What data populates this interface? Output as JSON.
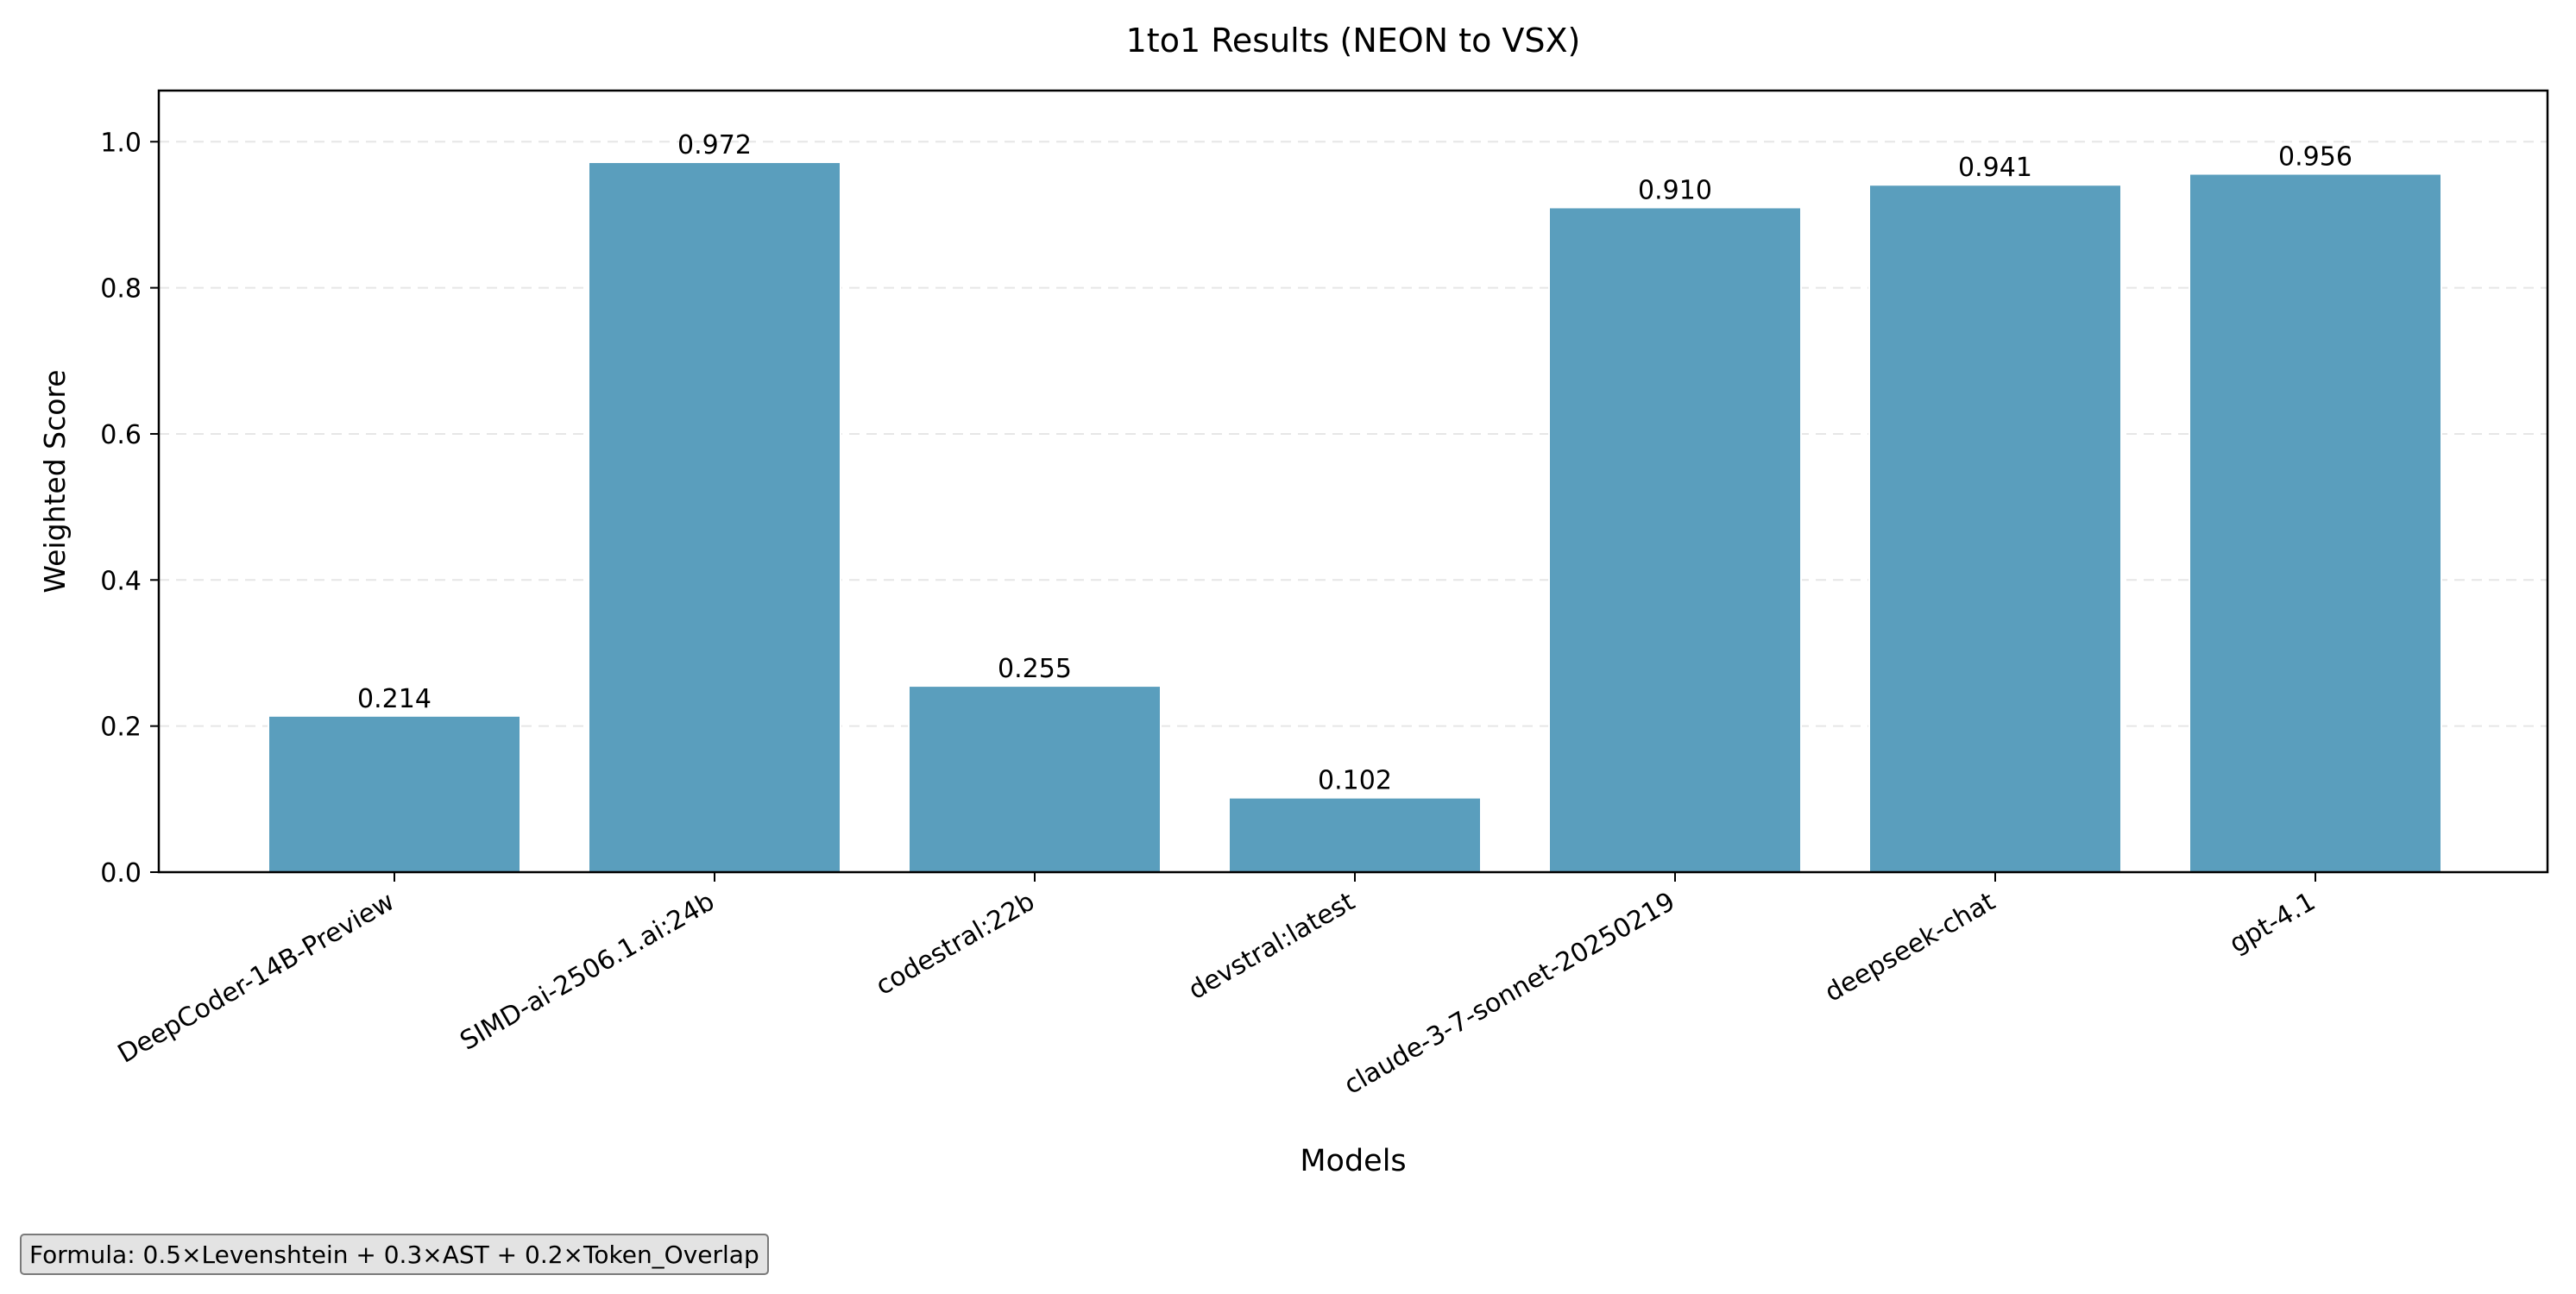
{
  "chart_data": {
    "type": "bar",
    "title": "1to1 Results (NEON to VSX)",
    "xlabel": "Models",
    "ylabel": "Weighted Score",
    "categories": [
      "DeepCoder-14B-Preview",
      "SIMD-ai-2506.1.ai:24b",
      "codestral:22b",
      "devstral:latest",
      "claude-3-7-sonnet-20250219",
      "deepseek-chat",
      "gpt-4.1"
    ],
    "values": [
      0.214,
      0.972,
      0.255,
      0.102,
      0.91,
      0.941,
      0.956
    ],
    "value_labels": [
      "0.214",
      "0.972",
      "0.255",
      "0.102",
      "0.910",
      "0.941",
      "0.956"
    ],
    "ylim": [
      0,
      1.07
    ],
    "yticks": [
      0.0,
      0.2,
      0.4,
      0.6,
      0.8,
      1.0
    ],
    "ytick_labels": [
      "0.0",
      "0.2",
      "0.4",
      "0.6",
      "0.8",
      "1.0"
    ],
    "grid": "horizontal dashed",
    "legend": "none",
    "bar_color": "#5a9ebd",
    "grid_color": "#e6e6e6"
  },
  "annotation": {
    "formula": "Formula: 0.5×Levenshtein + 0.3×AST + 0.2×Token_Overlap"
  }
}
